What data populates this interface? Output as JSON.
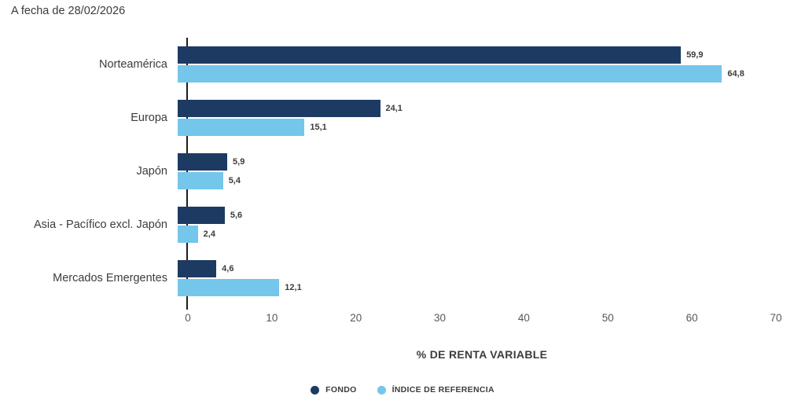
{
  "header": {
    "date_label": "A fecha de 28/02/2026"
  },
  "colors": {
    "fondo": "#1d3a63",
    "indice": "#74c6ea",
    "axis_line": "#1d1d1b",
    "label_text": "#3c3c3b",
    "tick_text": "#575756"
  },
  "chart_data": {
    "type": "bar",
    "orientation": "horizontal",
    "title": "A fecha de 28/02/2026",
    "xlabel": "% DE RENTA VARIABLE",
    "ylabel": "",
    "xlim": [
      0,
      70
    ],
    "xticks": [
      "0",
      "10",
      "20",
      "30",
      "40",
      "50",
      "60",
      "70"
    ],
    "xtick_values": [
      0,
      10,
      20,
      30,
      40,
      50,
      60,
      70
    ],
    "grid": false,
    "legend_position": "bottom",
    "categories": [
      "Norteamérica",
      "Europa",
      "Japón",
      "Asia - Pacífico excl. Japón",
      "Mercados Emergentes"
    ],
    "series": [
      {
        "name": "FONDO",
        "color": "#1d3a63",
        "values": [
          59.9,
          24.1,
          5.9,
          5.6,
          4.6
        ],
        "value_labels": [
          "59,9",
          "24,1",
          "5,9",
          "5,6",
          "4,6"
        ]
      },
      {
        "name": "ÍNDICE DE REFERENCIA",
        "color": "#74c6ea",
        "values": [
          64.8,
          15.1,
          5.4,
          2.4,
          12.1
        ],
        "value_labels": [
          "64,8",
          "15,1",
          "5,4",
          "2,4",
          "12,1"
        ]
      }
    ]
  }
}
